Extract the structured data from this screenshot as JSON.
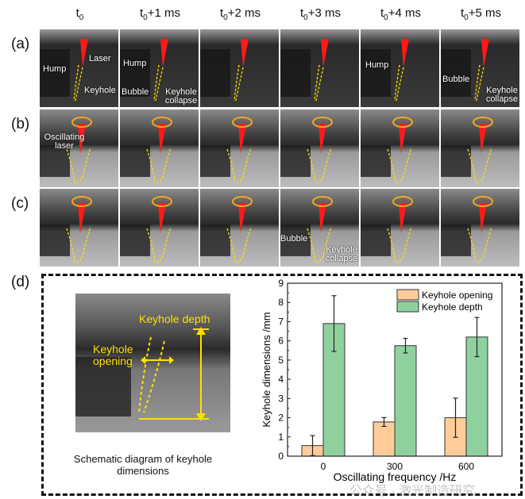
{
  "column_headers": [
    {
      "base": "t",
      "sub": "0",
      "suffix": ""
    },
    {
      "base": "t",
      "sub": "0",
      "suffix": "+1 ms"
    },
    {
      "base": "t",
      "sub": "0",
      "suffix": "+2 ms"
    },
    {
      "base": "t",
      "sub": "0",
      "suffix": "+3 ms"
    },
    {
      "base": "t",
      "sub": "0",
      "suffix": "+4 ms"
    },
    {
      "base": "t",
      "sub": "0",
      "suffix": "+5 ms"
    }
  ],
  "rows": [
    {
      "label": "(a)",
      "oscillating": false,
      "annotations": [
        [
          "Hump",
          "Laser",
          "Keyhole"
        ],
        [
          "Hump",
          "Bubble",
          "Keyhole collapse"
        ],
        [],
        [],
        [
          "Hump"
        ],
        [
          "Bubble",
          "Keyhole collapse"
        ]
      ]
    },
    {
      "label": "(b)",
      "oscillating": true,
      "annotations": [
        [
          "Oscillating laser"
        ],
        [],
        [],
        [],
        [],
        []
      ]
    },
    {
      "label": "(c)",
      "oscillating": true,
      "annotations": [
        [],
        [],
        [],
        [
          "Bubble",
          "Keyhole collapse"
        ],
        [],
        []
      ]
    }
  ],
  "panel_d": {
    "label": "(d)",
    "schematic": {
      "depth_label": "Keyhole depth",
      "opening_label": "Keyhole opening",
      "caption": "Schematic diagram of keyhole dimensions"
    }
  },
  "colors": {
    "laser": "#ff1a1a",
    "outline": "#ffe000",
    "oscillation_ring": "#f5a623",
    "opening_bar": "#ffcc99",
    "depth_bar": "#8fd19e"
  },
  "chart_data": {
    "type": "bar",
    "categories": [
      "0",
      "300",
      "600"
    ],
    "xlabel": "Oscillating frequency /Hz",
    "ylabel": "Keyhole dimensions /mm",
    "ylim": [
      0,
      9
    ],
    "yticks": [
      "0",
      "1",
      "2",
      "3",
      "4",
      "5",
      "6",
      "7",
      "8",
      "9"
    ],
    "legend_position": "top-right",
    "series": [
      {
        "name": "Keyhole opening",
        "values": [
          0.55,
          1.78,
          2.0
        ],
        "errors": [
          0.52,
          0.23,
          1.02
        ],
        "color": "#ffcc99"
      },
      {
        "name": "Keyhole depth",
        "values": [
          6.9,
          5.75,
          6.2
        ],
        "errors": [
          1.45,
          0.38,
          1.02
        ],
        "color": "#8fd19e"
      }
    ]
  },
  "watermark": "公众号 · 激光制造研究"
}
